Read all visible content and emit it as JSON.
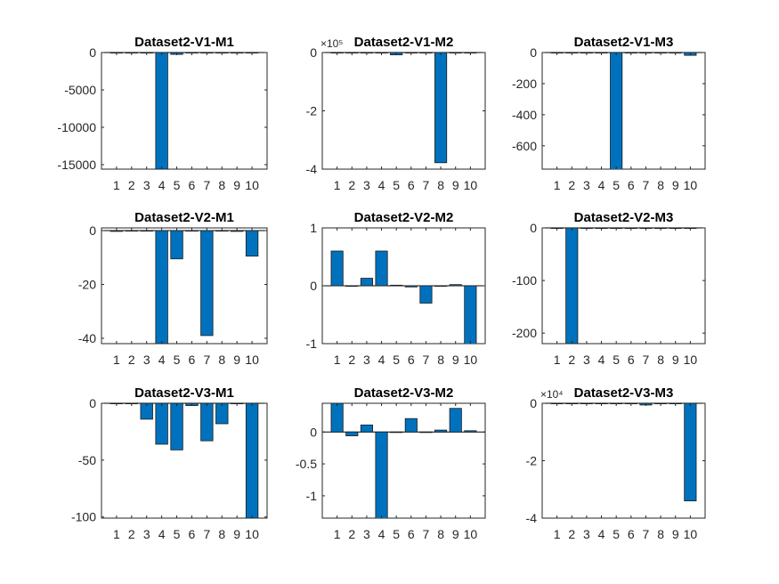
{
  "figure": {
    "background": "#ffffff",
    "bar_color": "#0072BD",
    "bar_edge": "#1a1a1a"
  },
  "chart_data": [
    {
      "type": "bar",
      "title": "Dataset2-V1-M1",
      "categories": [
        "1",
        "2",
        "3",
        "4",
        "5",
        "6",
        "7",
        "8",
        "9",
        "10"
      ],
      "values": [
        0,
        0,
        0,
        -15600,
        -250,
        0,
        0,
        0,
        0,
        0
      ],
      "ylim": [
        -15600,
        0
      ],
      "yticks": [
        0,
        -5000,
        -10000,
        -15000
      ],
      "ytick_labels": [
        "0",
        "-5000",
        "-10000",
        "-15000"
      ],
      "exponent": ""
    },
    {
      "type": "bar",
      "title": "Dataset2-V1-M2",
      "categories": [
        "1",
        "2",
        "3",
        "4",
        "5",
        "6",
        "7",
        "8",
        "9",
        "10"
      ],
      "values": [
        0,
        0,
        0,
        0,
        -0.08,
        0,
        0,
        -3.78,
        0,
        0
      ],
      "ylim": [
        -4,
        0
      ],
      "yticks": [
        0,
        -2,
        -4
      ],
      "ytick_labels": [
        "0",
        "-2",
        "-4"
      ],
      "exponent": "×10⁵"
    },
    {
      "type": "bar",
      "title": "Dataset2-V1-M3",
      "categories": [
        "1",
        "2",
        "3",
        "4",
        "5",
        "6",
        "7",
        "8",
        "9",
        "10"
      ],
      "values": [
        0,
        0,
        0,
        0,
        -760,
        0,
        0,
        0,
        0,
        -18
      ],
      "ylim": [
        -750,
        0
      ],
      "yticks": [
        0,
        -200,
        -400,
        -600
      ],
      "ytick_labels": [
        "0",
        "-200",
        "-400",
        "-600"
      ],
      "exponent": ""
    },
    {
      "type": "bar",
      "title": "Dataset2-V2-M1",
      "categories": [
        "1",
        "2",
        "3",
        "4",
        "5",
        "6",
        "7",
        "8",
        "9",
        "10"
      ],
      "values": [
        -0.3,
        0,
        0,
        -42,
        -10.5,
        0,
        -39,
        0,
        -0.3,
        -9.5
      ],
      "ylim": [
        -42,
        1
      ],
      "yticks": [
        0,
        -20,
        -40
      ],
      "ytick_labels": [
        "0",
        "-20",
        "-40"
      ],
      "exponent": ""
    },
    {
      "type": "bar",
      "title": "Dataset2-V2-M2",
      "categories": [
        "1",
        "2",
        "3",
        "4",
        "5",
        "6",
        "7",
        "8",
        "9",
        "10"
      ],
      "values": [
        0.6,
        0,
        0.13,
        0.6,
        0.01,
        -0.02,
        -0.3,
        0,
        0.02,
        -1.05
      ],
      "ylim": [
        -1,
        1
      ],
      "yticks": [
        1,
        0,
        -1
      ],
      "ytick_labels": [
        "1",
        "0",
        "-1"
      ],
      "exponent": ""
    },
    {
      "type": "bar",
      "title": "Dataset2-V2-M3",
      "categories": [
        "1",
        "2",
        "3",
        "4",
        "5",
        "6",
        "7",
        "8",
        "9",
        "10"
      ],
      "values": [
        0,
        -220,
        0,
        0,
        0,
        0,
        0,
        0,
        0,
        0
      ],
      "ylim": [
        -220,
        0
      ],
      "yticks": [
        0,
        -100,
        -200
      ],
      "ytick_labels": [
        "0",
        "-100",
        "-200"
      ],
      "exponent": ""
    },
    {
      "type": "bar",
      "title": "Dataset2-V3-M1",
      "categories": [
        "1",
        "2",
        "3",
        "4",
        "5",
        "6",
        "7",
        "8",
        "9",
        "10"
      ],
      "values": [
        0,
        0,
        -14,
        -36,
        -41,
        -2,
        -33,
        -18,
        0,
        -101
      ],
      "ylim": [
        -101,
        0
      ],
      "yticks": [
        0,
        -50,
        -100
      ],
      "ytick_labels": [
        "0",
        "-50",
        "-100"
      ],
      "exponent": ""
    },
    {
      "type": "bar",
      "title": "Dataset2-V3-M2",
      "categories": [
        "1",
        "2",
        "3",
        "4",
        "5",
        "6",
        "7",
        "8",
        "9",
        "10"
      ],
      "values": [
        0.45,
        -0.06,
        0.11,
        -1.4,
        0,
        0.21,
        0,
        0.03,
        0.37,
        0.02
      ],
      "ylim": [
        -1.35,
        0.45
      ],
      "yticks": [
        0,
        -0.5,
        -1
      ],
      "ytick_labels": [
        "0",
        "-0.5",
        "-1"
      ],
      "exponent": ""
    },
    {
      "type": "bar",
      "title": "Dataset2-V3-M3",
      "categories": [
        "1",
        "2",
        "3",
        "4",
        "5",
        "6",
        "7",
        "8",
        "9",
        "10"
      ],
      "values": [
        0,
        0,
        0,
        0,
        0,
        0,
        -0.06,
        0,
        0,
        -3.4
      ],
      "ylim": [
        -4,
        0
      ],
      "yticks": [
        0,
        -2,
        -4
      ],
      "ytick_labels": [
        "0",
        "-2",
        "-4"
      ],
      "exponent": "×10⁴"
    }
  ]
}
